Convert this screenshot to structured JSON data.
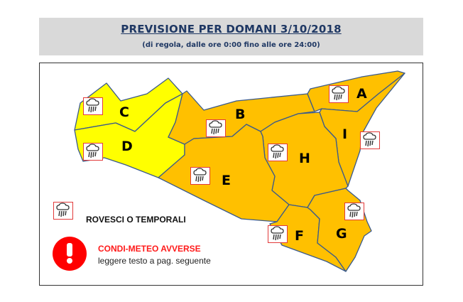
{
  "header": {
    "title": "PREVISIONE PER DOMANI 3/10/2018",
    "subtitle": "(di regola, dalle ore 0:00 fino alle ore 24:00)"
  },
  "colors": {
    "yellow_zone": "#ffff00",
    "orange_zone": "#ffc000",
    "border": "#3a5a8c",
    "warning": "#ff0000"
  },
  "zones": [
    {
      "id": "A",
      "level": "orange",
      "icon": "rain-storm-icon"
    },
    {
      "id": "B",
      "level": "orange",
      "icon": "rain-storm-icon"
    },
    {
      "id": "C",
      "level": "yellow",
      "icon": "rain-storm-icon"
    },
    {
      "id": "D",
      "level": "yellow",
      "icon": "rain-storm-icon"
    },
    {
      "id": "E",
      "level": "orange",
      "icon": "rain-storm-icon"
    },
    {
      "id": "F",
      "level": "orange",
      "icon": "rain-storm-icon"
    },
    {
      "id": "G",
      "level": "orange",
      "icon": "rain-storm-icon"
    },
    {
      "id": "H",
      "level": "orange",
      "icon": "rain-storm-icon"
    },
    {
      "id": "I",
      "level": "orange",
      "icon": "rain-storm-icon"
    }
  ],
  "legend": {
    "icon": "rain-storm-icon",
    "label": "ROVESCI O TEMPORALI",
    "warning_icon": "exclamation-circle-icon",
    "warning_title": "CONDI-METEO AVVERSE",
    "warning_text": "leggere testo a pag. seguente"
  }
}
